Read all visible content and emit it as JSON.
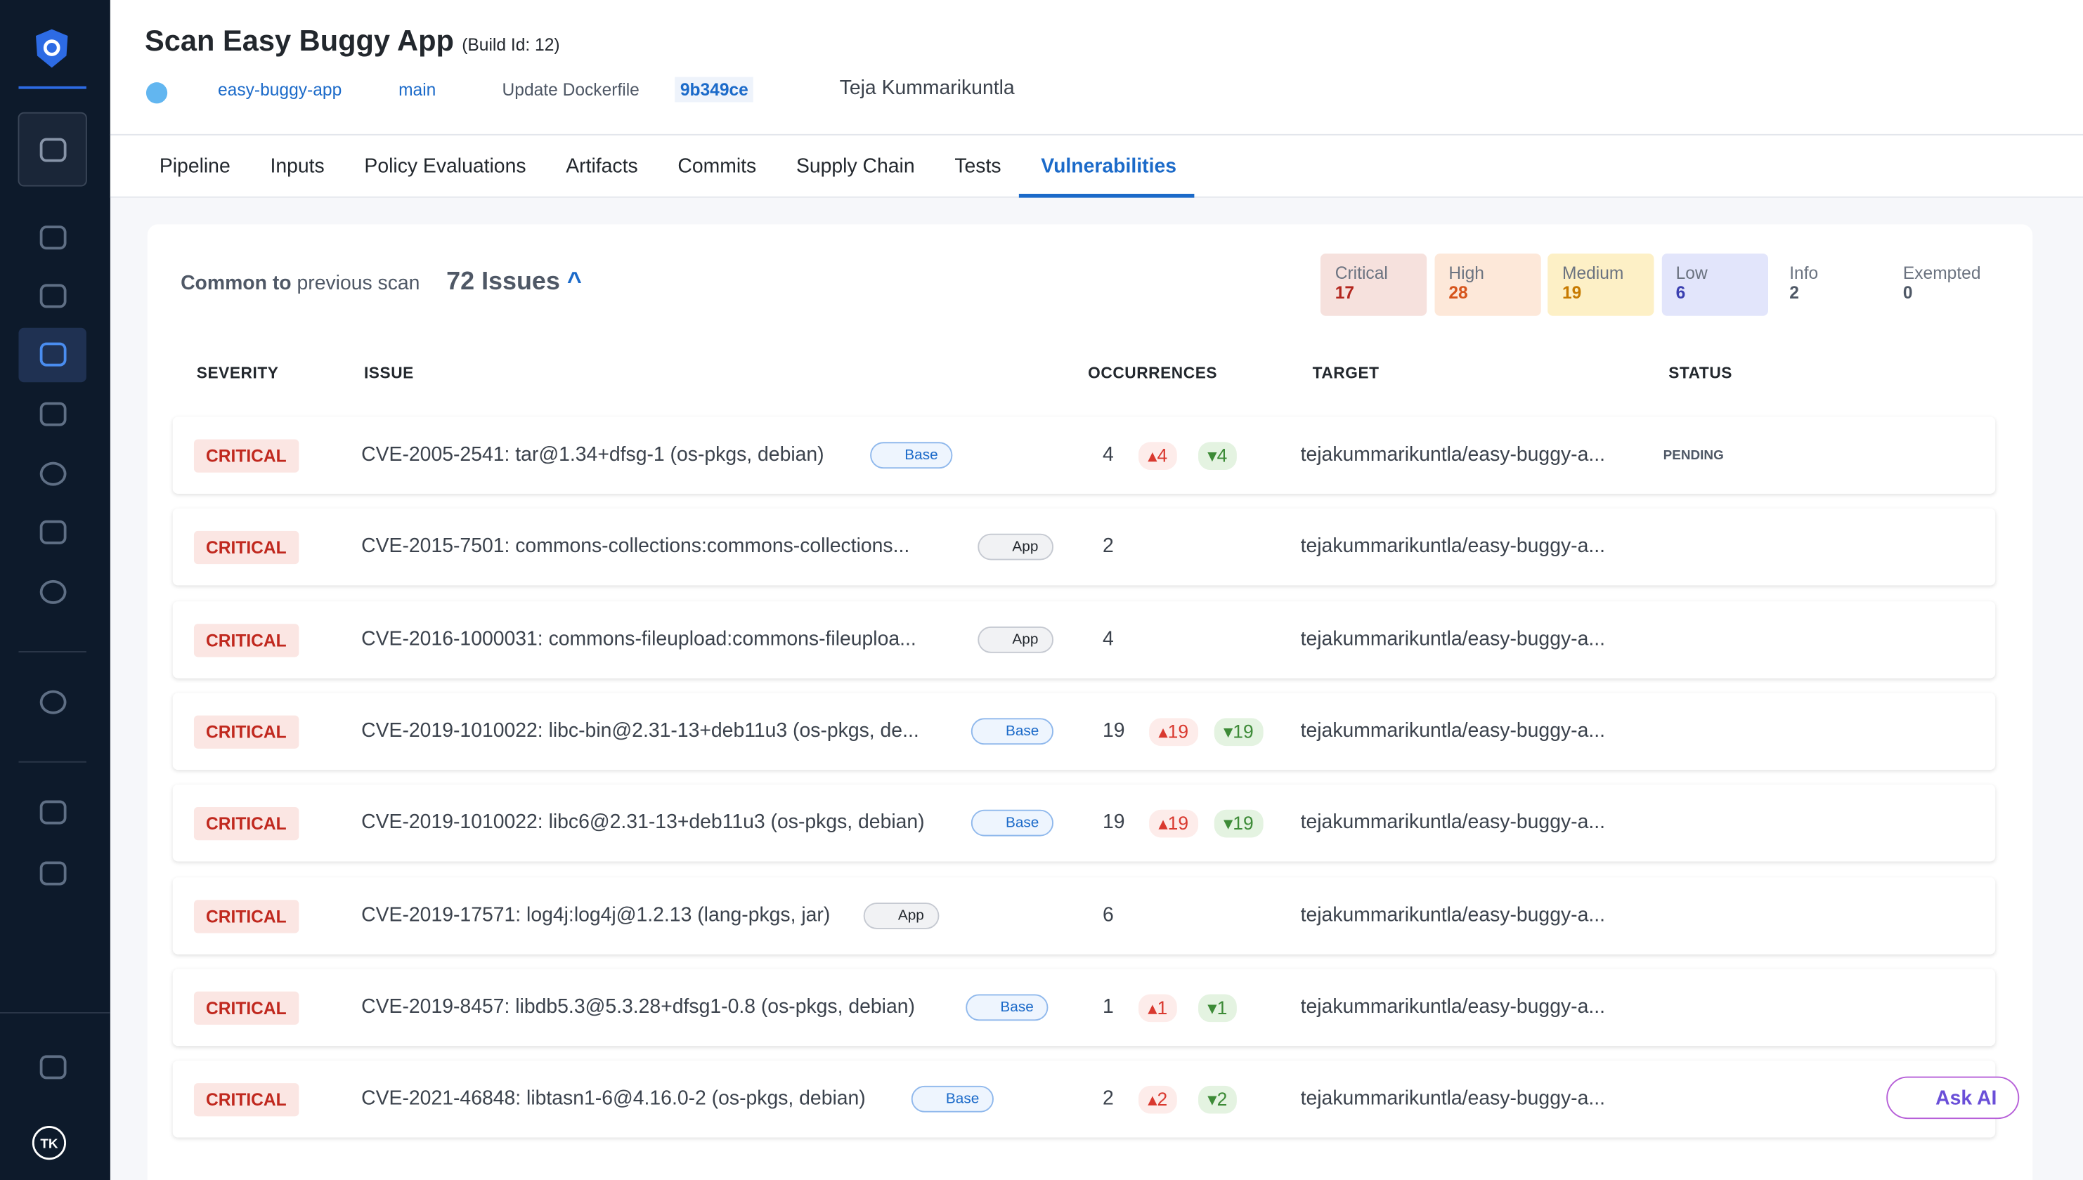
{
  "header": {
    "title": "Scan Easy Buggy App",
    "build": "(Build Id: 12)",
    "repo": "easy-buggy-app",
    "branch": "main",
    "commit_message": "Update Dockerfile",
    "commit": "9b349ce",
    "author": "Teja Kummarikuntla"
  },
  "tabs": [
    "Pipeline",
    "Inputs",
    "Policy Evaluations",
    "Artifacts",
    "Commits",
    "Supply Chain",
    "Tests",
    "Vulnerabilities"
  ],
  "summary": {
    "label_bold": "Common to",
    "label_rest": "previous scan",
    "issues": "72 Issues",
    "counts": [
      {
        "label": "Critical",
        "value": 17
      },
      {
        "label": "High",
        "value": 28
      },
      {
        "label": "Medium",
        "value": 19
      },
      {
        "label": "Low",
        "value": 6
      },
      {
        "label": "Info",
        "value": 2
      },
      {
        "label": "Exempted",
        "value": 0
      }
    ]
  },
  "table": {
    "columns": [
      "SEVERITY",
      "ISSUE",
      "OCCURRENCES",
      "TARGET",
      "STATUS"
    ],
    "rows": [
      {
        "severity": "CRITICAL",
        "issue": "CVE-2005-2541: tar@1.34+dfsg-1 (os-pkgs, debian)",
        "layer": "Base",
        "occurrences": 4,
        "new": 4,
        "fixed": 4,
        "target": "tejakummarikuntla/easy-buggy-a...",
        "status": "PENDING"
      },
      {
        "severity": "CRITICAL",
        "issue": "CVE-2015-7501: commons-collections:commons-collections...",
        "layer": "App",
        "occurrences": 2,
        "target": "tejakummarikuntla/easy-buggy-a..."
      },
      {
        "severity": "CRITICAL",
        "issue": "CVE-2016-1000031: commons-fileupload:commons-fileuploa...",
        "layer": "App",
        "occurrences": 4,
        "target": "tejakummarikuntla/easy-buggy-a..."
      },
      {
        "severity": "CRITICAL",
        "issue": "CVE-2019-1010022: libc-bin@2.31-13+deb11u3 (os-pkgs, de...",
        "layer": "Base",
        "occurrences": 19,
        "new": 19,
        "fixed": 19,
        "target": "tejakummarikuntla/easy-buggy-a..."
      },
      {
        "severity": "CRITICAL",
        "issue": "CVE-2019-1010022: libc6@2.31-13+deb11u3 (os-pkgs, debian)",
        "layer": "Base",
        "occurrences": 19,
        "new": 19,
        "fixed": 19,
        "target": "tejakummarikuntla/easy-buggy-a..."
      },
      {
        "severity": "CRITICAL",
        "issue": "CVE-2019-17571: log4j:log4j@1.2.13 (lang-pkgs, jar)",
        "layer": "App",
        "occurrences": 6,
        "target": "tejakummarikuntla/easy-buggy-a..."
      },
      {
        "severity": "CRITICAL",
        "issue": "CVE-2019-8457: libdb5.3@5.3.28+dfsg1-0.8 (os-pkgs, debian)",
        "layer": "Base",
        "occurrences": 1,
        "new": 1,
        "fixed": 1,
        "target": "tejakummarikuntla/easy-buggy-a..."
      },
      {
        "severity": "CRITICAL",
        "issue": "CVE-2021-46848: libtasn1-6@4.16.0-2 (os-pkgs, debian)",
        "layer": "Base",
        "occurrences": 2,
        "new": 2,
        "fixed": 2,
        "target": "tejakummarikuntla/easy-buggy-a..."
      }
    ]
  },
  "ask_ai": "Ask AI",
  "avatar": "TK"
}
